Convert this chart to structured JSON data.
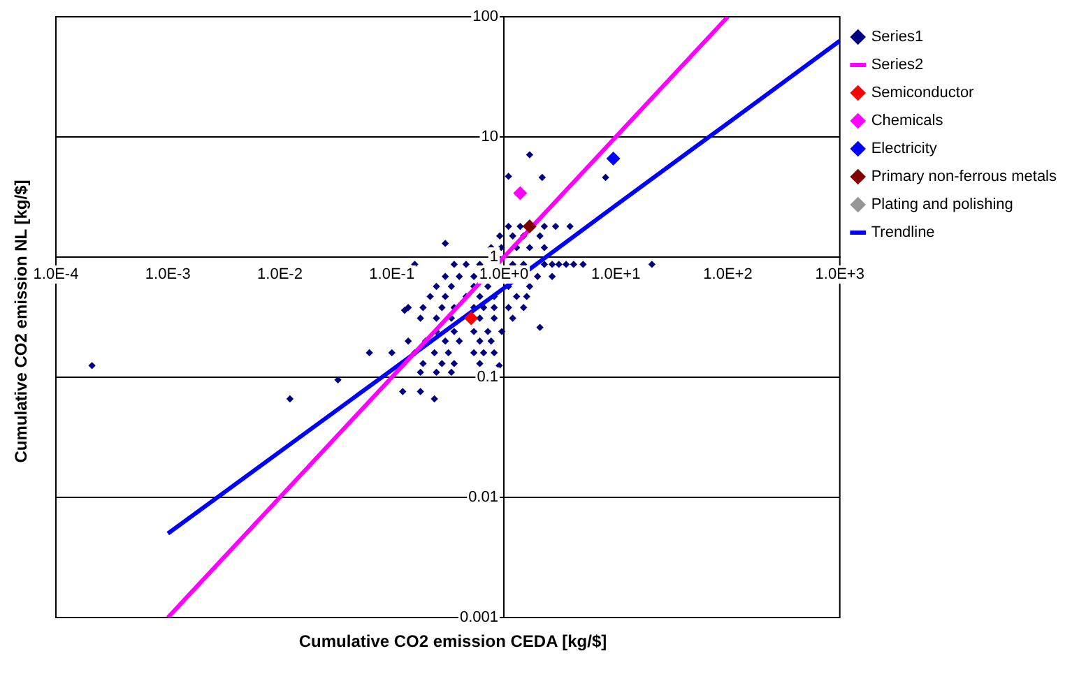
{
  "chart_data": {
    "type": "scatter",
    "xlabel": "Cumulative CO2 emission CEDA [kg/$]",
    "ylabel": "Cumulative CO2 emission NL [kg/$]",
    "log": "xy",
    "grid": "y",
    "legend": "right",
    "marker": "diamond",
    "xlim": [
      0.0001,
      1000
    ],
    "ylim": [
      0.001,
      100
    ],
    "xticks": [
      {
        "value": 0.0001,
        "label": "1.0E-4"
      },
      {
        "value": 0.001,
        "label": "1.0E-3"
      },
      {
        "value": 0.01,
        "label": "1.0E-2"
      },
      {
        "value": 0.1,
        "label": "1.0E-1"
      },
      {
        "value": 1,
        "label": "1.0E+0"
      },
      {
        "value": 10,
        "label": "1.0E+1"
      },
      {
        "value": 100,
        "label": "1.0E+2"
      },
      {
        "value": 1000,
        "label": "1.0E+3"
      }
    ],
    "yticks": [
      0.001,
      0.01,
      0.1,
      1,
      10,
      100
    ],
    "series": [
      {
        "name": "Series1",
        "color": "#000080",
        "x": [
          0.00021,
          0.0123,
          0.033,
          0.063,
          0.1,
          0.125,
          0.18,
          0.24,
          0.13,
          0.16,
          0.3,
          1.1,
          1.7,
          2.2,
          8.1,
          21,
          5.1,
          2.1,
          0.91,
          1.1,
          1.4,
          2.3,
          2.9,
          3.9,
          0.92,
          1.2,
          1.5,
          2.1,
          0.77,
          0.95,
          1.3,
          1.7,
          2.3,
          0.36,
          0.46,
          0.61,
          1.2,
          1.5,
          2.3,
          2.7,
          3.1,
          3.6,
          4.2,
          0.3,
          0.4,
          0.54,
          2.0,
          2.7,
          0.25,
          0.34,
          0.54,
          0.72,
          1.1,
          1.7,
          0.22,
          0.3,
          0.46,
          0.61,
          0.82,
          1.3,
          1.6,
          0.14,
          0.19,
          0.28,
          0.36,
          0.54,
          0.66,
          0.82,
          1.1,
          1.5,
          0.18,
          0.25,
          0.34,
          0.61,
          0.82,
          1.2,
          0.25,
          0.36,
          0.54,
          0.72,
          0.96,
          0.14,
          0.2,
          0.3,
          0.4,
          0.61,
          0.77,
          0.16,
          0.24,
          0.32,
          0.54,
          0.66,
          0.82,
          0.19,
          0.28,
          0.36,
          0.61,
          0.18,
          0.25,
          0.34
        ],
        "values": [
          0.125,
          0.066,
          0.095,
          0.16,
          0.16,
          0.076,
          0.076,
          0.066,
          0.36,
          0.87,
          1.3,
          4.7,
          7.1,
          4.6,
          4.6,
          0.87,
          0.87,
          0.26,
          0.125,
          1.8,
          1.8,
          1.8,
          1.8,
          1.8,
          1.5,
          1.5,
          1.5,
          1.5,
          1.2,
          1.2,
          1.2,
          1.2,
          1.2,
          0.87,
          0.87,
          0.87,
          0.87,
          0.87,
          0.87,
          0.87,
          0.87,
          0.87,
          0.87,
          0.69,
          0.69,
          0.69,
          0.69,
          0.69,
          0.57,
          0.57,
          0.57,
          0.57,
          0.57,
          0.57,
          0.47,
          0.47,
          0.47,
          0.47,
          0.47,
          0.47,
          0.47,
          0.38,
          0.38,
          0.38,
          0.38,
          0.38,
          0.38,
          0.38,
          0.38,
          0.38,
          0.31,
          0.31,
          0.31,
          0.31,
          0.31,
          0.31,
          0.24,
          0.24,
          0.24,
          0.24,
          0.24,
          0.2,
          0.2,
          0.2,
          0.2,
          0.2,
          0.2,
          0.16,
          0.16,
          0.16,
          0.16,
          0.16,
          0.16,
          0.13,
          0.13,
          0.13,
          0.13,
          0.11,
          0.11,
          0.11
        ]
      },
      {
        "name": "Series2",
        "type": "line",
        "marker": "none",
        "color": "#ff00ff",
        "x": [
          0.001,
          100
        ],
        "values": [
          0.001,
          100
        ]
      },
      {
        "name": "Semiconductor",
        "color": "#ff0000",
        "x": [
          0.51
        ],
        "values": [
          0.31
        ]
      },
      {
        "name": "Chemicals",
        "color": "#ff00ff",
        "x": [
          1.4
        ],
        "values": [
          3.4
        ]
      },
      {
        "name": "Electricity",
        "color": "#0000ff",
        "x": [
          9.5
        ],
        "values": [
          6.6
        ]
      },
      {
        "name": "Primary non-ferrous metals",
        "color": "#800000",
        "x": [
          1.7
        ],
        "values": [
          1.8
        ]
      },
      {
        "name": "Plating and polishing",
        "color": "#969696",
        "x": [
          null
        ],
        "values": [
          null
        ]
      },
      {
        "name": "Trendline",
        "type": "line",
        "marker": "none",
        "color": "#0000ff",
        "x": [
          0.001,
          0.01,
          0.1,
          1,
          10,
          100,
          1000
        ],
        "values": [
          0.005,
          0.024,
          0.115,
          0.55,
          2.7,
          13,
          63
        ]
      }
    ]
  }
}
